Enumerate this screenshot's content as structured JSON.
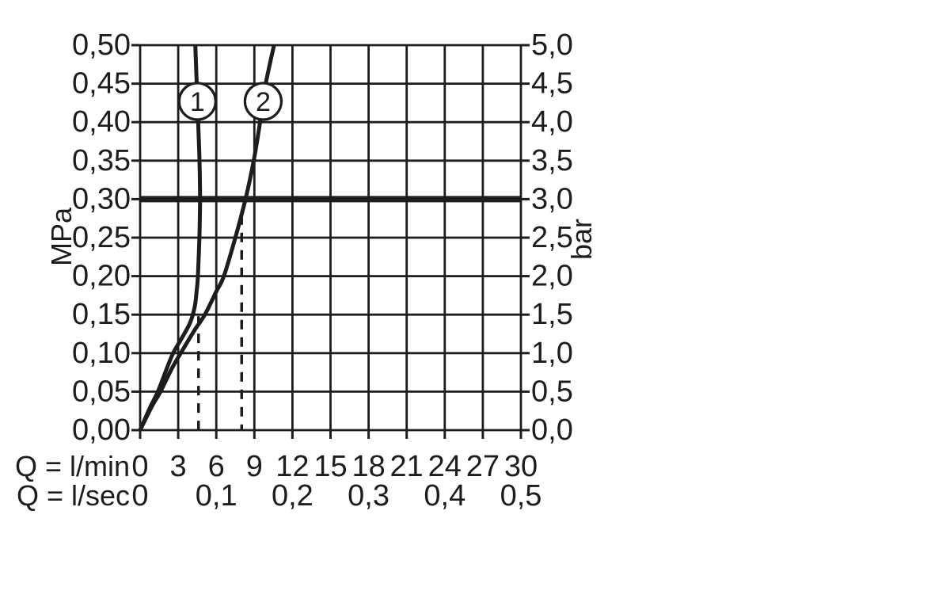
{
  "style": {
    "background": "#ffffff",
    "ink": "#1d1d1b"
  },
  "chart_data": {
    "type": "line",
    "grid": true,
    "legend": false,
    "x_axis": {
      "range_lmin": [
        0,
        30
      ],
      "unit_rows": [
        {
          "label": "Q = l/min",
          "ticks": [
            {
              "q_lmin": 0,
              "label": "0"
            },
            {
              "q_lmin": 3,
              "label": "3"
            },
            {
              "q_lmin": 6,
              "label": "6"
            },
            {
              "q_lmin": 9,
              "label": "9"
            },
            {
              "q_lmin": 12,
              "label": "12"
            },
            {
              "q_lmin": 15,
              "label": "15"
            },
            {
              "q_lmin": 18,
              "label": "18"
            },
            {
              "q_lmin": 21,
              "label": "21"
            },
            {
              "q_lmin": 24,
              "label": "24"
            },
            {
              "q_lmin": 27,
              "label": "27"
            },
            {
              "q_lmin": 30,
              "label": "30"
            }
          ]
        },
        {
          "label": "Q = l/sec",
          "ticks": [
            {
              "q_lmin": 0,
              "label": "0"
            },
            {
              "q_lmin": 6,
              "label": "0,1"
            },
            {
              "q_lmin": 12,
              "label": "0,2"
            },
            {
              "q_lmin": 18,
              "label": "0,3"
            },
            {
              "q_lmin": 24,
              "label": "0,4"
            },
            {
              "q_lmin": 30,
              "label": "0,5"
            }
          ]
        }
      ]
    },
    "y_axis_left": {
      "unit": "MPa",
      "range_mpa": [
        0,
        0.5
      ],
      "ticks": [
        {
          "mpa": 0.5,
          "label": "0,50"
        },
        {
          "mpa": 0.45,
          "label": "0,45"
        },
        {
          "mpa": 0.4,
          "label": "0,40"
        },
        {
          "mpa": 0.35,
          "label": "0,35"
        },
        {
          "mpa": 0.3,
          "label": "0,30"
        },
        {
          "mpa": 0.25,
          "label": "0,25"
        },
        {
          "mpa": 0.2,
          "label": "0,20"
        },
        {
          "mpa": 0.15,
          "label": "0,15"
        },
        {
          "mpa": 0.1,
          "label": "0,10"
        },
        {
          "mpa": 0.05,
          "label": "0,05"
        },
        {
          "mpa": 0.0,
          "label": "0,00"
        }
      ]
    },
    "y_axis_right": {
      "unit": "bar",
      "range_bar": [
        0,
        5
      ],
      "ticks": [
        {
          "mpa": 0.5,
          "label": "5,0"
        },
        {
          "mpa": 0.45,
          "label": "4,5"
        },
        {
          "mpa": 0.4,
          "label": "4,0"
        },
        {
          "mpa": 0.35,
          "label": "3,5"
        },
        {
          "mpa": 0.3,
          "label": "3,0"
        },
        {
          "mpa": 0.25,
          "label": "2,5"
        },
        {
          "mpa": 0.2,
          "label": "2,0"
        },
        {
          "mpa": 0.15,
          "label": "1,5"
        },
        {
          "mpa": 0.1,
          "label": "1,0"
        },
        {
          "mpa": 0.05,
          "label": "0,5"
        },
        {
          "mpa": 0.0,
          "label": "0,0"
        }
      ]
    },
    "reference_line": {
      "mpa": 0.3
    },
    "guides": [
      {
        "q_lmin": 4.6,
        "to_mpa": 0.148
      },
      {
        "q_lmin": 8.0,
        "to_mpa": 0.279
      }
    ],
    "series": [
      {
        "name": "1",
        "badge": "1",
        "badge_mpa": 0.427,
        "points_mpa_lmin": [
          [
            0,
            0
          ],
          [
            0.03,
            0.8
          ],
          [
            0.05,
            1.4
          ],
          [
            0.08,
            2.1
          ],
          [
            0.1,
            2.6
          ],
          [
            0.12,
            3.3
          ],
          [
            0.14,
            3.95
          ],
          [
            0.16,
            4.3
          ],
          [
            0.18,
            4.45
          ],
          [
            0.2,
            4.55
          ],
          [
            0.25,
            4.67
          ],
          [
            0.3,
            4.72
          ],
          [
            0.35,
            4.68
          ],
          [
            0.4,
            4.57
          ],
          [
            0.45,
            4.46
          ],
          [
            0.5,
            4.35
          ]
        ]
      },
      {
        "name": "2",
        "badge": "2",
        "badge_mpa": 0.427,
        "points_mpa_lmin": [
          [
            0,
            0
          ],
          [
            0.03,
            0.9
          ],
          [
            0.05,
            1.6
          ],
          [
            0.08,
            2.5
          ],
          [
            0.1,
            3.2
          ],
          [
            0.13,
            4.3
          ],
          [
            0.15,
            5.1
          ],
          [
            0.18,
            6.0
          ],
          [
            0.2,
            6.6
          ],
          [
            0.25,
            7.5
          ],
          [
            0.3,
            8.3
          ],
          [
            0.35,
            8.95
          ],
          [
            0.4,
            9.45
          ],
          [
            0.45,
            9.9
          ],
          [
            0.5,
            10.55
          ]
        ]
      }
    ]
  }
}
